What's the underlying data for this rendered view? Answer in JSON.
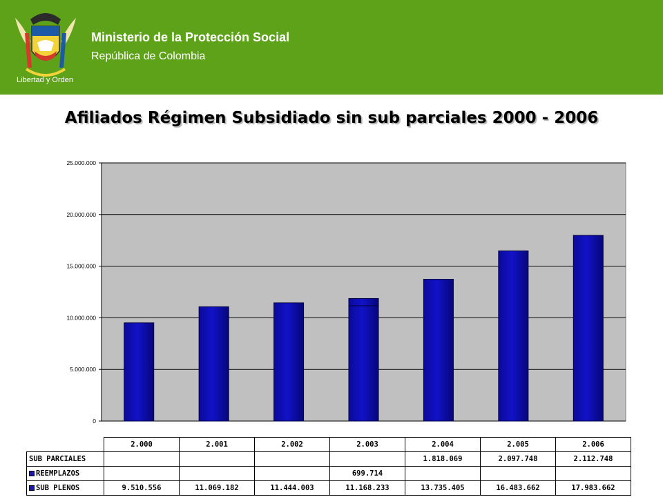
{
  "header": {
    "organization": "Ministerio de la Protección Social",
    "country": "República de Colombia",
    "motto": "Libertad y Orden",
    "background_color": "#5ea21a",
    "logo_icon": "colombia-coat-of-arms-icon"
  },
  "chart_data": {
    "type": "bar",
    "title": "Afiliados Régimen Subsidiado sin sub parciales 2000 - 2006",
    "categories": [
      "2.000",
      "2.001",
      "2.002",
      "2.003",
      "2.004",
      "2.005",
      "2.006"
    ],
    "series": [
      {
        "name": "SUB PLENOS",
        "values": [
          9510556,
          11069182,
          11444003,
          11168233,
          13735405,
          16483662,
          17983662
        ],
        "labels": [
          "9.510.556",
          "11.069.182",
          "11.444.003",
          "11.168.233",
          "13.735.405",
          "16.483.662",
          "17.983.662"
        ]
      },
      {
        "name": "REEMPLAZOS",
        "values": [
          null,
          null,
          null,
          699714,
          null,
          null,
          null
        ],
        "labels": [
          "",
          "",
          "",
          "699.714",
          "",
          "",
          ""
        ]
      },
      {
        "name": "SUB PARCIALES",
        "values": [
          null,
          null,
          null,
          null,
          1818069,
          2097748,
          2112748
        ],
        "labels": [
          "",
          "",
          "",
          "",
          "1.818.069",
          "2.097.748",
          "2.112.748"
        ]
      }
    ],
    "plotted_series": [
      "SUB PLENOS",
      "REEMPLAZOS"
    ],
    "stacked": true,
    "ylim": [
      0,
      25000000
    ],
    "yticks": [
      0,
      5000000,
      10000000,
      15000000,
      20000000,
      25000000
    ],
    "ytick_labels": [
      "0",
      "5.000.000",
      "10.000.000",
      "15.000.000",
      "20.000.000",
      "25.000.000"
    ],
    "grid": true,
    "data_table": true,
    "colors": {
      "bar": "#1212c8",
      "bar_edge": "#000040",
      "plot_bg": "#c0c0c0"
    }
  }
}
